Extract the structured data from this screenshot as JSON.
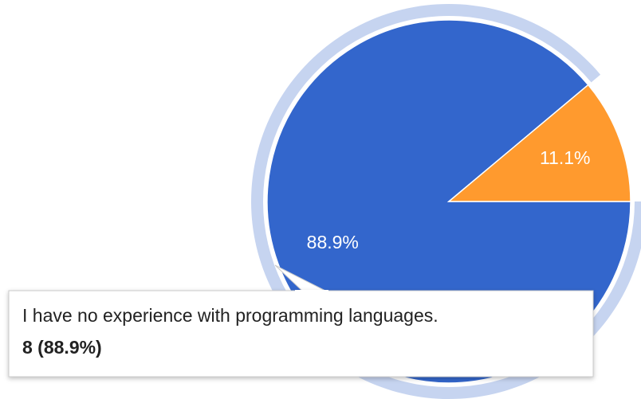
{
  "chart_data": {
    "type": "pie",
    "categories": [
      "I have no experience with programming languages.",
      null
    ],
    "values": [
      88.9,
      11.1
    ],
    "value_labels": [
      "88.9%",
      "11.1%"
    ],
    "colors": [
      "#3366cc",
      "#ff9a2e"
    ],
    "highlight_color": "#c6d4f0",
    "tooltip": {
      "category": "I have no experience with programming languages.",
      "detail": "8 (88.9%)"
    }
  }
}
